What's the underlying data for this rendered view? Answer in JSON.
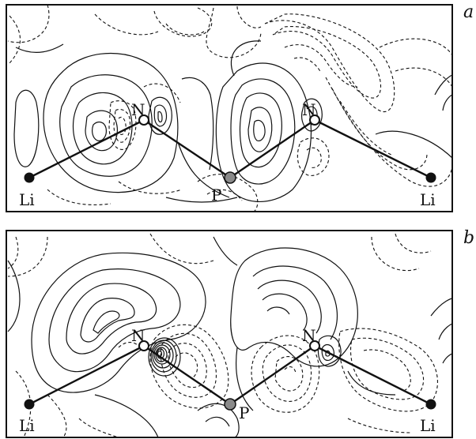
{
  "panels": [
    {
      "label": "a",
      "atoms": [
        {
          "symbol": "N",
          "kind": "open"
        },
        {
          "symbol": "N",
          "kind": "open"
        },
        {
          "symbol": "P",
          "kind": "gray"
        },
        {
          "symbol": "Li",
          "kind": "black"
        },
        {
          "symbol": "Li",
          "kind": "black"
        }
      ]
    },
    {
      "label": "b",
      "atoms": [
        {
          "symbol": "N",
          "kind": "open"
        },
        {
          "symbol": "N",
          "kind": "open"
        },
        {
          "symbol": "P",
          "kind": "gray"
        },
        {
          "symbol": "Li",
          "kind": "black"
        },
        {
          "symbol": "Li",
          "kind": "black"
        }
      ]
    }
  ],
  "colors": {
    "line": "#111111",
    "phosphorus": "#8a8a8a",
    "lithium": "#111111",
    "nitrogen": "#ffffff"
  }
}
